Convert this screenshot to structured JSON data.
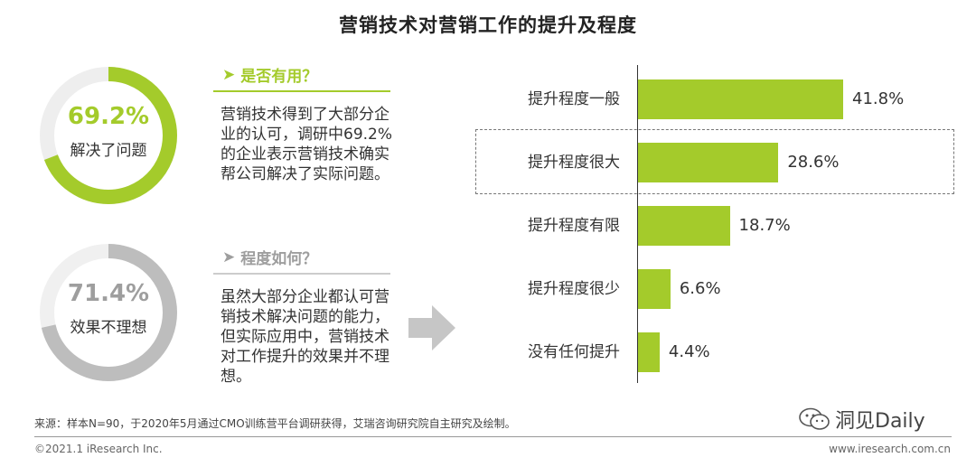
{
  "chart_data": [
    {
      "type": "donut",
      "value_label": "69.2%",
      "value": 69.2,
      "label": "解决了问题",
      "color": "#a4cb2b"
    },
    {
      "type": "donut",
      "value_label": "71.4%",
      "value": 71.4,
      "label": "效果不理想",
      "color": "#bdbdbd"
    },
    {
      "type": "bar",
      "orientation": "horizontal",
      "title": "营销技术对营销工作的提升及程度",
      "categories": [
        "提升程度一般",
        "提升程度很大",
        "提升程度有限",
        "提升程度很少",
        "没有任何提升"
      ],
      "values": [
        41.8,
        28.6,
        18.7,
        6.6,
        4.4
      ],
      "value_labels": [
        "41.8%",
        "28.6%",
        "18.7%",
        "6.6%",
        "4.4%"
      ],
      "highlighted_category": "提升程度很大",
      "color": "#a4cb2b",
      "xlim": [
        0,
        41.8
      ]
    }
  ],
  "panels": [
    {
      "heading": "是否有用？",
      "body": "营销技术得到了大部分企业的认可，调研中69.2%的企业表示营销技术确实帮公司解决了实际问题。",
      "color": "#a4cb2b"
    },
    {
      "heading": "程度如何？",
      "body": "虽然大部分企业都认可营销技术解决问题的能力，但实际应用中，营销技术对工作提升的效果并不理想。",
      "color": "#9e9e9e"
    }
  ],
  "footer": {
    "source": "来源：样本N=90，于2020年5月通过CMO训练营平台调研获得，艾瑞咨询研究院自主研究及绘制。",
    "copyright": "©2021.1 iResearch Inc.",
    "website": "www.iresearch.com.cn",
    "watermark": "洞见Daily"
  }
}
